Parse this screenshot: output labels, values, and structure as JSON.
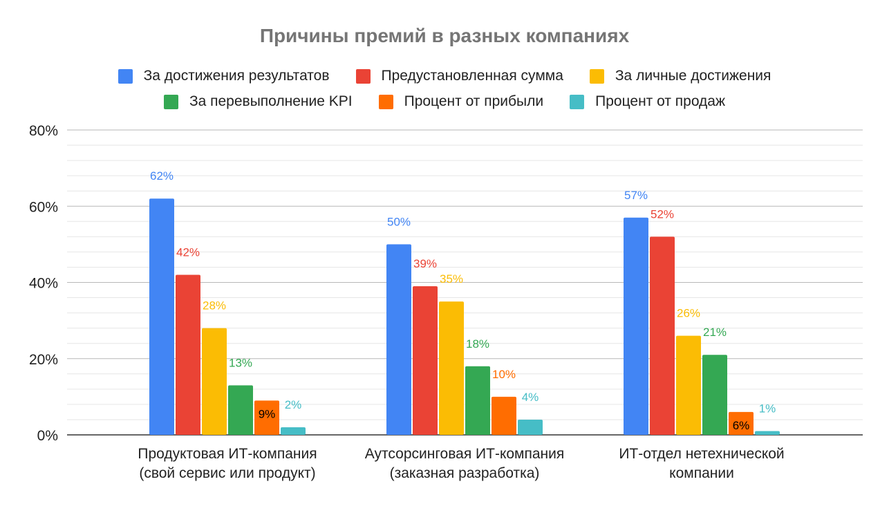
{
  "chart_data": {
    "type": "bar",
    "title": "Причины премий в разных компаниях",
    "categories": [
      [
        "Продуктовая ИТ-компания",
        "(свой сервис или продукт)"
      ],
      [
        "Аутсорсинговая ИТ-компания",
        "(заказная разработка)"
      ],
      [
        "ИТ-отдел нетехнической",
        "компании"
      ]
    ],
    "series": [
      {
        "name": "За достижения результатов",
        "color": "#4285f4",
        "values": [
          62,
          50,
          57
        ]
      },
      {
        "name": "Предустановленная сумма",
        "color": "#ea4335",
        "values": [
          42,
          39,
          52
        ]
      },
      {
        "name": "За личные достижения",
        "color": "#fbbc04",
        "values": [
          28,
          35,
          26
        ]
      },
      {
        "name": "За перевыполнение KPI",
        "color": "#34a853",
        "values": [
          13,
          18,
          21
        ]
      },
      {
        "name": "Процент от прибыли",
        "color": "#ff6d01",
        "values": [
          9,
          10,
          6
        ]
      },
      {
        "name": "Процент от продаж",
        "color": "#46bdc6",
        "values": [
          2,
          4,
          1
        ]
      }
    ],
    "yticks": [
      "0%",
      "20%",
      "40%",
      "60%",
      "80%"
    ],
    "ylim": [
      0,
      80
    ],
    "grid": true,
    "legend": "top",
    "xlabel": "",
    "ylabel": ""
  }
}
